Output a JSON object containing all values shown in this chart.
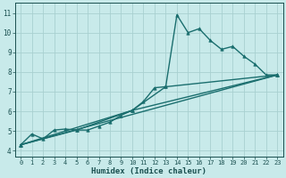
{
  "xlabel": "Humidex (Indice chaleur)",
  "background_color": "#c8eaea",
  "grid_color": "#a8d0d0",
  "line_color": "#1a6e6e",
  "xlim": [
    -0.5,
    23.5
  ],
  "ylim": [
    3.7,
    11.5
  ],
  "xticks": [
    0,
    1,
    2,
    3,
    4,
    5,
    6,
    7,
    8,
    9,
    10,
    11,
    12,
    13,
    14,
    15,
    16,
    17,
    18,
    19,
    20,
    21,
    22,
    23
  ],
  "yticks": [
    4,
    5,
    6,
    7,
    8,
    9,
    10,
    11
  ],
  "series": [
    {
      "x": [
        0,
        1,
        2,
        3,
        4,
        5,
        6,
        7,
        8,
        9,
        10,
        11,
        12,
        13,
        14,
        15,
        16,
        17,
        18,
        19,
        20,
        21,
        22,
        23
      ],
      "y": [
        4.3,
        4.85,
        4.6,
        5.05,
        5.1,
        5.05,
        5.05,
        5.25,
        5.45,
        5.8,
        6.05,
        6.5,
        7.2,
        7.25,
        10.9,
        10.0,
        10.2,
        9.6,
        9.15,
        9.3,
        8.8,
        8.4,
        7.85,
        7.85
      ],
      "marker": "^",
      "linewidth": 1.0,
      "markersize": 2.5
    },
    {
      "x": [
        0,
        23
      ],
      "y": [
        4.3,
        7.85
      ],
      "marker": null,
      "linewidth": 1.0,
      "markersize": 0
    },
    {
      "x": [
        0,
        5,
        10,
        23
      ],
      "y": [
        4.3,
        5.05,
        6.05,
        7.85
      ],
      "marker": "^",
      "linewidth": 1.0,
      "markersize": 2.5
    },
    {
      "x": [
        0,
        10,
        13,
        23
      ],
      "y": [
        4.3,
        6.05,
        7.25,
        7.85
      ],
      "marker": "^",
      "linewidth": 1.0,
      "markersize": 2.5
    }
  ]
}
